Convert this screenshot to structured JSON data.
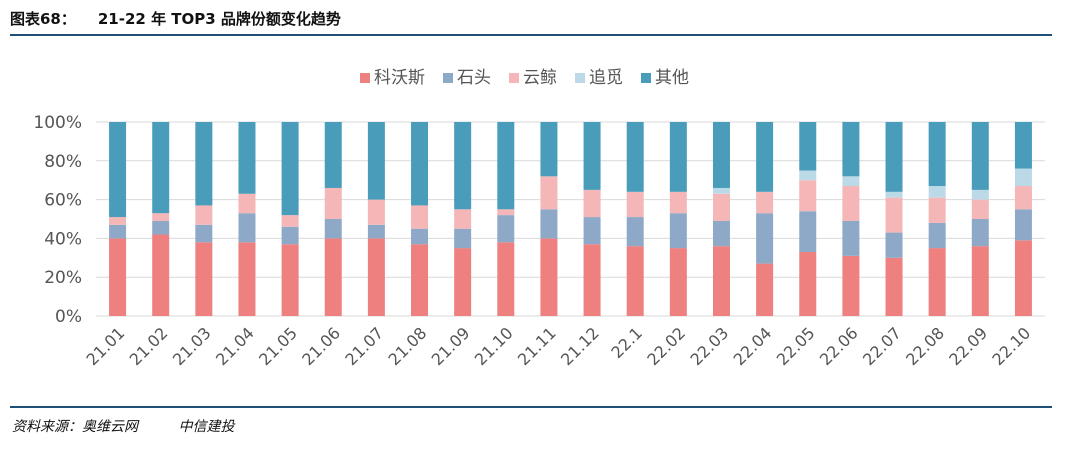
{
  "header": {
    "figure_label": "图表68：",
    "title": "21-22 年 TOP3 品牌份额变化趋势"
  },
  "footer": {
    "source": "资料来源：奥维云网",
    "org": "中信建投"
  },
  "chart_data": {
    "type": "bar",
    "stacked": true,
    "title": "",
    "xlabel": "",
    "ylabel": "",
    "ylim": [
      0,
      100
    ],
    "y_ticks": [
      "0%",
      "20%",
      "40%",
      "60%",
      "80%",
      "100%"
    ],
    "legend_position": "top",
    "grid": true,
    "categories": [
      "21.01",
      "21.02",
      "21.03",
      "21.04",
      "21.05",
      "21.06",
      "21.07",
      "21.08",
      "21.09",
      "21.10",
      "21.11",
      "21.12",
      "22.1",
      "22.02",
      "22.03",
      "22.04",
      "22.05",
      "22.06",
      "22.07",
      "22.08",
      "22.09",
      "22.10"
    ],
    "series": [
      {
        "name": "科沃斯",
        "color": "#ee8080",
        "values": [
          40,
          42,
          38,
          38,
          37,
          40,
          40,
          37,
          35,
          38,
          40,
          37,
          36,
          35,
          36,
          27,
          33,
          31,
          30,
          35,
          36,
          39
        ]
      },
      {
        "name": "石头",
        "color": "#8ea9c8",
        "values": [
          7,
          7,
          9,
          15,
          9,
          10,
          7,
          8,
          10,
          14,
          15,
          14,
          15,
          18,
          13,
          26,
          21,
          18,
          13,
          13,
          14,
          16
        ]
      },
      {
        "name": "云鲸",
        "color": "#f4b6b6",
        "values": [
          4,
          4,
          10,
          10,
          6,
          16,
          13,
          12,
          10,
          3,
          17,
          14,
          13,
          11,
          14,
          11,
          16,
          18,
          18,
          13,
          10,
          12
        ]
      },
      {
        "name": "追觅",
        "color": "#bcd9e8",
        "values": [
          0,
          0,
          0,
          0,
          0,
          0,
          0,
          0,
          0,
          0,
          0,
          0,
          0,
          0,
          3,
          0,
          5,
          5,
          3,
          6,
          5,
          9
        ]
      },
      {
        "name": "其他",
        "color": "#4a9dba",
        "values": [
          49,
          47,
          43,
          37,
          48,
          34,
          40,
          43,
          45,
          45,
          28,
          35,
          36,
          36,
          34,
          36,
          25,
          28,
          36,
          33,
          35,
          24
        ]
      }
    ]
  }
}
